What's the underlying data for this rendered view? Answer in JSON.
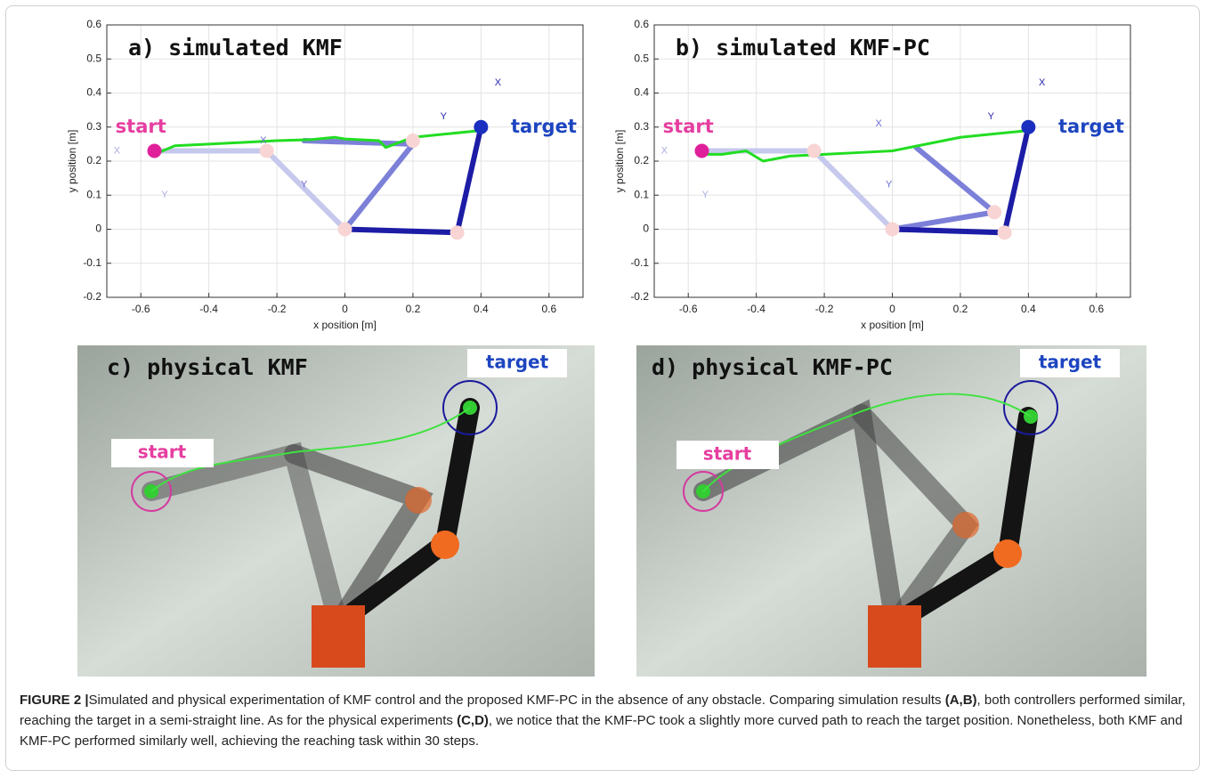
{
  "chart_data": [
    {
      "type": "line",
      "title": "a) simulated KMF",
      "xlabel": "x position [m]",
      "ylabel": "y position [m]",
      "xlim": [
        -0.7,
        0.7
      ],
      "ylim": [
        -0.2,
        0.6
      ],
      "xticks": [
        -0.6,
        -0.4,
        -0.2,
        0,
        0.2,
        0.4,
        0.6
      ],
      "yticks": [
        -0.2,
        -0.1,
        0,
        0.1,
        0.2,
        0.3,
        0.4,
        0.5,
        0.6
      ],
      "grid": true,
      "series": [
        {
          "color": "#c6c9ec",
          "x": [
            0,
            -0.23,
            -0.56
          ],
          "values": [
            0,
            0.23,
            0.23
          ]
        },
        {
          "color": "#7c80d8",
          "x": [
            0,
            0.2,
            -0.12
          ],
          "values": [
            0,
            0.25,
            0.26
          ]
        },
        {
          "color": "#1c1ca6",
          "x": [
            0,
            0.33,
            0.4
          ],
          "values": [
            0,
            -0.01,
            0.3
          ]
        },
        {
          "color": "#22dd22",
          "x": [
            -0.56,
            -0.5,
            -0.4,
            -0.3,
            -0.2,
            -0.1,
            -0.03,
            0,
            0.1,
            0.12,
            0.2,
            0.3,
            0.4
          ],
          "values": [
            0.22,
            0.245,
            0.25,
            0.255,
            0.26,
            0.263,
            0.27,
            0.265,
            0.26,
            0.24,
            0.27,
            0.28,
            0.29
          ]
        },
        {
          "type": "scatter",
          "color": "#f8d4d4",
          "x": [
            0,
            -0.23,
            0.2,
            0.33
          ],
          "values": [
            0,
            0.23,
            0.26,
            -0.01
          ]
        },
        {
          "type": "scatter",
          "color": "#e0209a",
          "x": [
            -0.56
          ],
          "values": [
            0.23
          ]
        },
        {
          "type": "scatter",
          "color": "#1a2fbf",
          "x": [
            0.4
          ],
          "values": [
            0.3
          ]
        }
      ],
      "annotations": [
        {
          "text": "start",
          "x": -0.6,
          "y": 0.3,
          "color": "#e63ea0"
        },
        {
          "text": "target",
          "x": 0.6,
          "y": 0.3,
          "color": "#1d45c0"
        },
        {
          "text": "X",
          "x": 0.45,
          "y": 0.43,
          "color": "#2222aa"
        },
        {
          "text": "Y",
          "x": 0.29,
          "y": 0.33,
          "color": "#2222aa"
        },
        {
          "text": "X",
          "x": -0.67,
          "y": 0.23,
          "color": "#a9acdf"
        },
        {
          "text": "Y",
          "x": -0.53,
          "y": 0.1,
          "color": "#a9acdf"
        },
        {
          "text": "X",
          "x": -0.24,
          "y": 0.26,
          "color": "#6a6ed0"
        },
        {
          "text": "Y",
          "x": -0.12,
          "y": 0.13,
          "color": "#6a6ed0"
        }
      ]
    },
    {
      "type": "line",
      "title": "b) simulated KMF-PC",
      "xlabel": "x position [m]",
      "ylabel": "y position [m]",
      "xlim": [
        -0.7,
        0.7
      ],
      "ylim": [
        -0.2,
        0.6
      ],
      "xticks": [
        -0.6,
        -0.4,
        -0.2,
        0,
        0.2,
        0.4,
        0.6
      ],
      "yticks": [
        -0.2,
        -0.1,
        0,
        0.1,
        0.2,
        0.3,
        0.4,
        0.5,
        0.6
      ],
      "grid": true,
      "series": [
        {
          "color": "#c6c9ec",
          "x": [
            0,
            -0.23,
            -0.56
          ],
          "values": [
            0,
            0.23,
            0.23
          ]
        },
        {
          "color": "#7c80d8",
          "x": [
            0,
            0.3,
            0.07
          ],
          "values": [
            0,
            0.05,
            0.24
          ]
        },
        {
          "color": "#1c1ca6",
          "x": [
            0,
            0.33,
            0.4
          ],
          "values": [
            0,
            -0.01,
            0.3
          ]
        },
        {
          "color": "#22dd22",
          "x": [
            -0.56,
            -0.5,
            -0.43,
            -0.38,
            -0.3,
            -0.2,
            -0.1,
            0,
            0.1,
            0.2,
            0.3,
            0.4
          ],
          "values": [
            0.22,
            0.22,
            0.23,
            0.2,
            0.215,
            0.22,
            0.225,
            0.23,
            0.25,
            0.27,
            0.28,
            0.29
          ]
        },
        {
          "type": "scatter",
          "color": "#f8d4d4",
          "x": [
            0,
            -0.23,
            0.3,
            0.33
          ],
          "values": [
            0,
            0.23,
            0.05,
            -0.01
          ]
        },
        {
          "type": "scatter",
          "color": "#e0209a",
          "x": [
            -0.56
          ],
          "values": [
            0.23
          ]
        },
        {
          "type": "scatter",
          "color": "#1a2fbf",
          "x": [
            0.4
          ],
          "values": [
            0.3
          ]
        }
      ],
      "annotations": [
        {
          "text": "start",
          "x": -0.6,
          "y": 0.3,
          "color": "#e63ea0"
        },
        {
          "text": "target",
          "x": 0.6,
          "y": 0.3,
          "color": "#1d45c0"
        },
        {
          "text": "X",
          "x": 0.44,
          "y": 0.43,
          "color": "#2222aa"
        },
        {
          "text": "Y",
          "x": 0.29,
          "y": 0.33,
          "color": "#2222aa"
        },
        {
          "text": "X",
          "x": -0.67,
          "y": 0.23,
          "color": "#a9acdf"
        },
        {
          "text": "Y",
          "x": -0.55,
          "y": 0.1,
          "color": "#a9acdf"
        },
        {
          "text": "X",
          "x": -0.04,
          "y": 0.31,
          "color": "#6a6ed0"
        },
        {
          "text": "Y",
          "x": -0.01,
          "y": 0.13,
          "color": "#6a6ed0"
        }
      ]
    }
  ],
  "photos": [
    {
      "title": "c) physical KMF",
      "start": "start",
      "target": "target"
    },
    {
      "title": "d) physical KMF-PC",
      "start": "start",
      "target": "target"
    }
  ],
  "caption": {
    "label": "FIGURE 2 |",
    "parts": [
      "Simulated and physical experimentation of KMF control and the proposed KMF-PC in the absence of any obstacle. Comparing simulation results ",
      "(A,B)",
      ", both controllers performed similar, reaching the target in a semi-straight line. As for the physical experiments ",
      "(C,D)",
      ", we notice that the KMF-PC took a slightly more curved path to reach the target position. Nonetheless, both KMF and KMF-PC performed similarly well, achieving the reaching task within 30 steps."
    ]
  }
}
